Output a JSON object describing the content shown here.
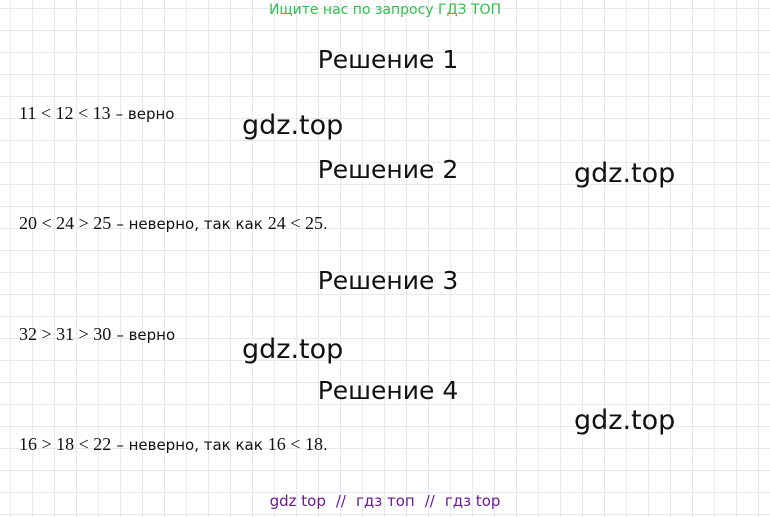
{
  "header": {
    "text": "Ищите нас по запросу ГДЗ ТОП"
  },
  "solutions": [
    {
      "title": "Решение 1",
      "parts": [
        {
          "kind": "math",
          "text": "11 < 12 < 13"
        },
        {
          "kind": "text",
          "text": "– верно"
        }
      ]
    },
    {
      "title": "Решение 2",
      "parts": [
        {
          "kind": "math",
          "text": "20 < 24 > 25"
        },
        {
          "kind": "text",
          "text": "– неверно, так как"
        },
        {
          "kind": "math",
          "text": "24 < 25"
        },
        {
          "kind": "text",
          "text": "."
        }
      ]
    },
    {
      "title": "Решение 3",
      "parts": [
        {
          "kind": "math",
          "text": "32 > 31 > 30"
        },
        {
          "kind": "text",
          "text": "– верно"
        }
      ]
    },
    {
      "title": "Решение 4",
      "parts": [
        {
          "kind": "math",
          "text": "16 > 18 < 22"
        },
        {
          "kind": "text",
          "text": "– неверно, так как"
        },
        {
          "kind": "math",
          "text": "16 < 18"
        },
        {
          "kind": "text",
          "text": "."
        }
      ]
    }
  ],
  "watermarks": [
    "gdz.top",
    "gdz.top",
    "gdz.top",
    "gdz.top"
  ],
  "footer": [
    "gdz top",
    "//",
    "гдз топ",
    "//",
    "гдз top"
  ]
}
